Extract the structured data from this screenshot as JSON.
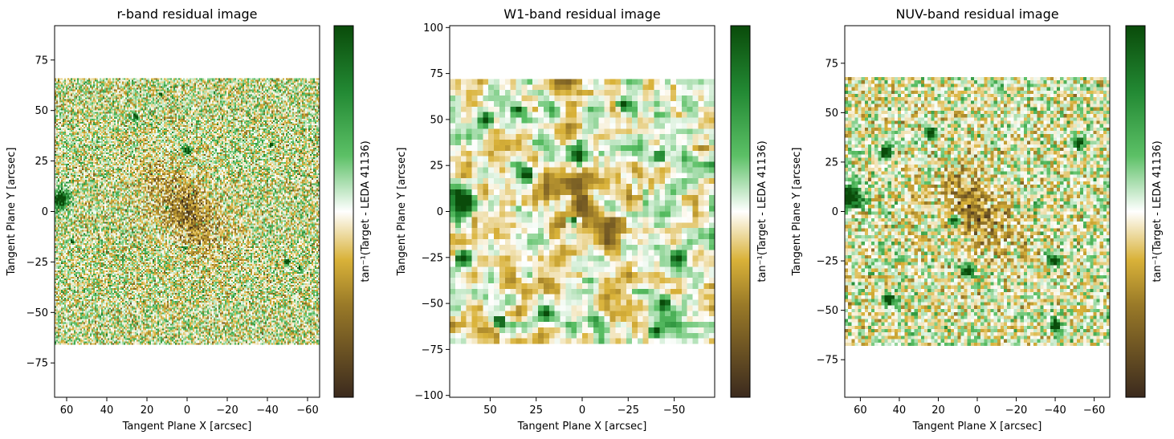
{
  "chart_data": [
    {
      "type": "heatmap",
      "title": "r-band residual image",
      "xlabel": "Tangent Plane X [arcsec]",
      "ylabel": "Tangent Plane Y [arcsec]",
      "xlim": [
        66,
        -66
      ],
      "ylim": [
        -92,
        92
      ],
      "data_extent_y": [
        -66,
        66
      ],
      "xticks": [
        60,
        40,
        20,
        0,
        -20,
        -40,
        -60
      ],
      "xtick_labels": [
        "60",
        "40",
        "20",
        "0",
        "−20",
        "−40",
        "−60"
      ],
      "yticks": [
        -75,
        -50,
        -25,
        0,
        25,
        50,
        75
      ],
      "ytick_labels": [
        "−75",
        "−50",
        "−25",
        "0",
        "25",
        "50",
        "75"
      ],
      "colorbar_label": "tan⁻¹(Target - LEDA 41136)",
      "colormap": [
        "#3b2a1e",
        "#d4aa2e",
        "#ffffff",
        "#2e9a3e",
        "#0a4b0a"
      ],
      "sources": [
        [
          63,
          6,
          4.5
        ],
        [
          30,
          0,
          0
        ],
        [
          0,
          30,
          2
        ],
        [
          26,
          47,
          1.5
        ],
        [
          -42,
          33,
          1.2
        ],
        [
          -50,
          -25,
          1.5
        ],
        [
          1,
          -18,
          1.2
        ],
        [
          57,
          -15,
          1
        ],
        [
          13,
          58,
          1
        ],
        [
          -56,
          -28,
          1
        ],
        [
          10,
          2,
          1.2
        ]
      ]
    },
    {
      "type": "heatmap",
      "title": "W1-band residual image",
      "xlabel": "Tangent Plane X [arcsec]",
      "ylabel": "Tangent Plane Y [arcsec]",
      "xlim": [
        72,
        -72
      ],
      "ylim": [
        -101,
        101
      ],
      "data_extent_y": [
        -72,
        72
      ],
      "xticks": [
        50,
        25,
        0,
        -25,
        -50
      ],
      "xtick_labels": [
        "50",
        "25",
        "0",
        "−25",
        "−50"
      ],
      "yticks": [
        -100,
        -75,
        -50,
        -25,
        0,
        25,
        50,
        75,
        100
      ],
      "ytick_labels": [
        "−100",
        "−75",
        "−50",
        "−25",
        "0",
        "25",
        "50",
        "75",
        "100"
      ],
      "colorbar_label": "tan⁻¹(Target - LEDA 41136)",
      "colormap": [
        "#3b2a1e",
        "#d4aa2e",
        "#ffffff",
        "#2e9a3e",
        "#0a4b0a"
      ],
      "sources": [
        [
          66,
          5,
          7
        ],
        [
          2,
          30,
          4
        ],
        [
          -42,
          30,
          4
        ],
        [
          -52,
          -25,
          4
        ],
        [
          45,
          -60,
          3
        ],
        [
          20,
          -55,
          3
        ],
        [
          -45,
          -50,
          3
        ],
        [
          52,
          50,
          3
        ],
        [
          35,
          55,
          3
        ],
        [
          -22,
          58,
          3
        ],
        [
          30,
          20,
          3
        ],
        [
          5,
          -5,
          3
        ],
        [
          -40,
          -65,
          3
        ],
        [
          65,
          -25,
          3
        ]
      ]
    },
    {
      "type": "heatmap",
      "title": "NUV-band residual image",
      "xlabel": "Tangent Plane X [arcsec]",
      "ylabel": "Tangent Plane Y [arcsec]",
      "xlim": [
        68,
        -68
      ],
      "ylim": [
        -94,
        94
      ],
      "data_extent_y": [
        -68,
        68
      ],
      "xticks": [
        60,
        40,
        20,
        0,
        -20,
        -40,
        -60
      ],
      "xtick_labels": [
        "60",
        "40",
        "20",
        "0",
        "−20",
        "−40",
        "−60"
      ],
      "yticks": [
        -75,
        -50,
        -25,
        0,
        25,
        50,
        75
      ],
      "ytick_labels": [
        "−75",
        "−50",
        "−25",
        "0",
        "25",
        "50",
        "75"
      ],
      "colorbar_label": "tan⁻¹(Target - LEDA 41136)",
      "colormap": [
        "#3b2a1e",
        "#d4aa2e",
        "#ffffff",
        "#2e9a3e",
        "#0a4b0a"
      ],
      "sources": [
        [
          65,
          8,
          6
        ],
        [
          -52,
          35,
          3
        ],
        [
          45,
          -45,
          3
        ],
        [
          -40,
          -25,
          3
        ],
        [
          -40,
          -58,
          3
        ],
        [
          5,
          -30,
          3
        ],
        [
          47,
          30,
          3
        ],
        [
          12,
          -5,
          2.5
        ],
        [
          24,
          40,
          2.5
        ]
      ]
    }
  ]
}
